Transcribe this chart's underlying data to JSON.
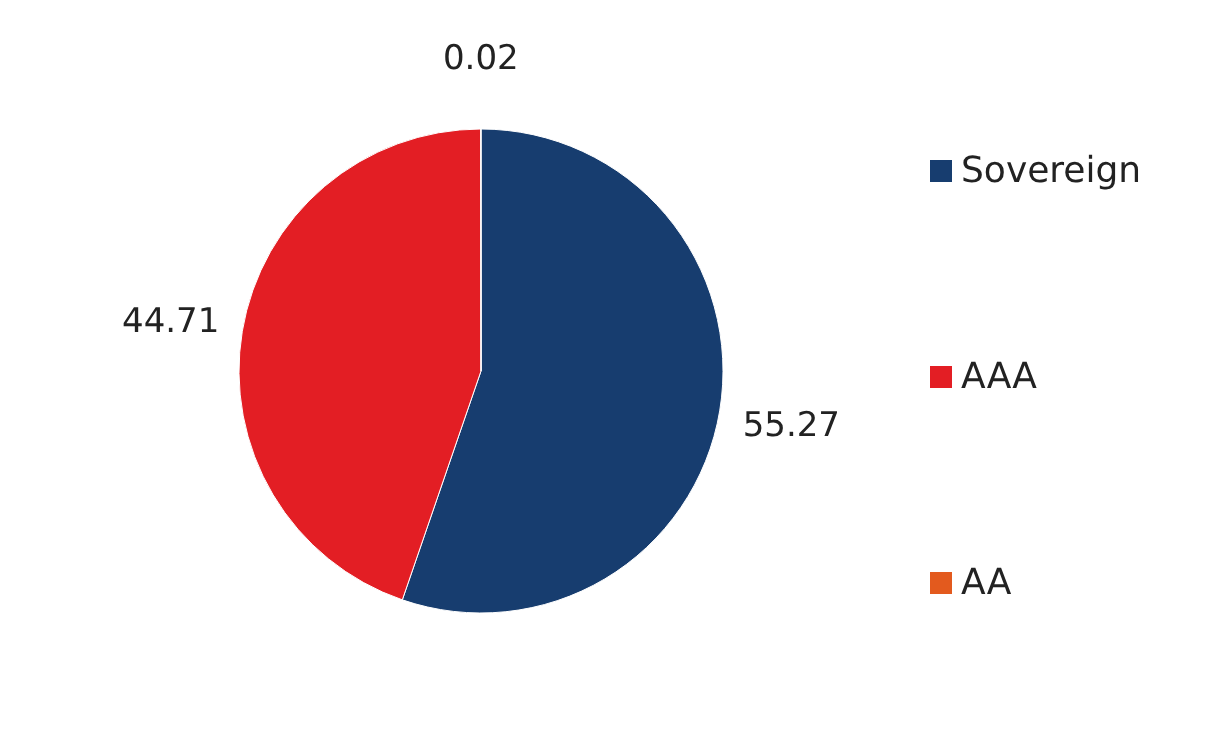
{
  "chart_data": {
    "type": "pie",
    "categories": [
      "Sovereign",
      "AAA",
      "AA"
    ],
    "values": [
      55.27,
      44.71,
      0.02
    ],
    "colors": [
      "#173d6f",
      "#e31e24",
      "#e35a1e"
    ],
    "data_labels": true,
    "legend": "right"
  }
}
